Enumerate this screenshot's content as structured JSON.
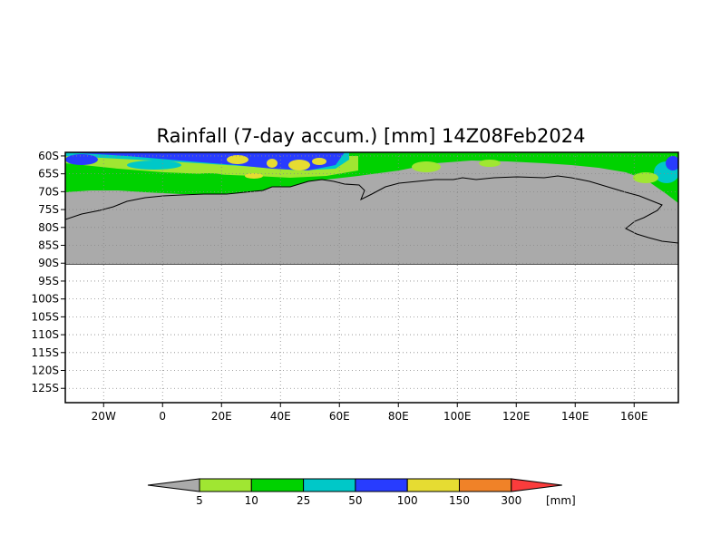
{
  "map": {
    "title": "Rainfall (7-day accum.) [mm] 14Z08Feb2024",
    "lat_labels": [
      "60S",
      "65S",
      "70S",
      "75S",
      "80S",
      "85S",
      "90S",
      "95S",
      "100S",
      "105S",
      "110S",
      "115S",
      "120S",
      "125S"
    ],
    "lon_labels": [
      "20W",
      "0",
      "20E",
      "40E",
      "60E",
      "80E",
      "100E",
      "120E",
      "140E",
      "160E"
    ],
    "lat_range": [
      -129,
      -59
    ],
    "lon_range": [
      -33,
      175
    ],
    "land_color": "#aaaaaa",
    "outside_domain_color": "#ffffff",
    "grid": true
  },
  "colorbar": {
    "unit_label": "[mm]",
    "tick_labels": [
      "5",
      "10",
      "25",
      "50",
      "100",
      "150",
      "300"
    ],
    "bins": [
      {
        "color": "#aaaaaa"
      },
      {
        "color": "#a0e632"
      },
      {
        "color": "#00d200"
      },
      {
        "color": "#00c8c8"
      },
      {
        "color": "#283cff"
      },
      {
        "color": "#e6dc32"
      },
      {
        "color": "#f08228"
      },
      {
        "color": "#fa3c3c"
      }
    ]
  }
}
